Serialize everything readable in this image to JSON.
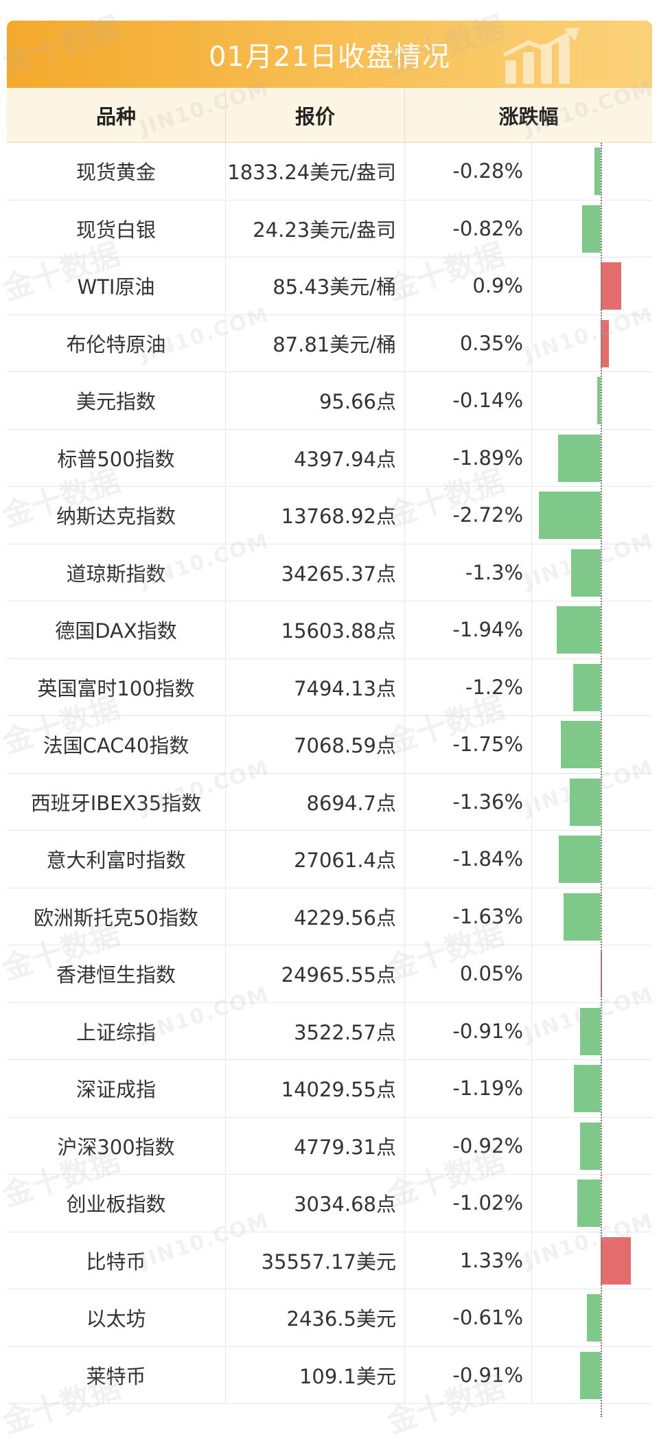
{
  "title": "01月21日收盘情况",
  "headers": {
    "name": "品种",
    "price": "报价",
    "change": "涨跌幅"
  },
  "watermark": {
    "cn": "金十数据",
    "en": "JIN10.COM"
  },
  "colors": {
    "title_start": "#f4a92c",
    "header_bg": "#fdf5e4",
    "negative": "#7ec98a",
    "positive": "#e36c6c"
  },
  "rows": [
    {
      "name": "现货黄金",
      "price": "1833.24美元/盎司",
      "change": "-0.28%",
      "value": -0.28
    },
    {
      "name": "现货白银",
      "price": "24.23美元/盎司",
      "change": "-0.82%",
      "value": -0.82
    },
    {
      "name": "WTI原油",
      "price": "85.43美元/桶",
      "change": "0.9%",
      "value": 0.9
    },
    {
      "name": "布伦特原油",
      "price": "87.81美元/桶",
      "change": "0.35%",
      "value": 0.35
    },
    {
      "name": "美元指数",
      "price": "95.66点",
      "change": "-0.14%",
      "value": -0.14
    },
    {
      "name": "标普500指数",
      "price": "4397.94点",
      "change": "-1.89%",
      "value": -1.89
    },
    {
      "name": "纳斯达克指数",
      "price": "13768.92点",
      "change": "-2.72%",
      "value": -2.72
    },
    {
      "name": "道琼斯指数",
      "price": "34265.37点",
      "change": "-1.3%",
      "value": -1.3
    },
    {
      "name": "德国DAX指数",
      "price": "15603.88点",
      "change": "-1.94%",
      "value": -1.94
    },
    {
      "name": "英国富时100指数",
      "price": "7494.13点",
      "change": "-1.2%",
      "value": -1.2
    },
    {
      "name": "法国CAC40指数",
      "price": "7068.59点",
      "change": "-1.75%",
      "value": -1.75
    },
    {
      "name": "西班牙IBEX35指数",
      "price": "8694.7点",
      "change": "-1.36%",
      "value": -1.36
    },
    {
      "name": "意大利富时指数",
      "price": "27061.4点",
      "change": "-1.84%",
      "value": -1.84
    },
    {
      "name": "欧洲斯托克50指数",
      "price": "4229.56点",
      "change": "-1.63%",
      "value": -1.63
    },
    {
      "name": "香港恒生指数",
      "price": "24965.55点",
      "change": "0.05%",
      "value": 0.05
    },
    {
      "name": "上证综指",
      "price": "3522.57点",
      "change": "-0.91%",
      "value": -0.91
    },
    {
      "name": "深证成指",
      "price": "14029.55点",
      "change": "-1.19%",
      "value": -1.19
    },
    {
      "name": "沪深300指数",
      "price": "4779.31点",
      "change": "-0.92%",
      "value": -0.92
    },
    {
      "name": "创业板指数",
      "price": "3034.68点",
      "change": "-1.02%",
      "value": -1.02
    },
    {
      "name": "比特币",
      "price": "35557.17美元",
      "change": "1.33%",
      "value": 1.33
    },
    {
      "name": "以太坊",
      "price": "2436.5美元",
      "change": "-0.61%",
      "value": -0.61
    },
    {
      "name": "莱特币",
      "price": "109.1美元",
      "change": "-0.91%",
      "value": -0.91
    }
  ]
}
